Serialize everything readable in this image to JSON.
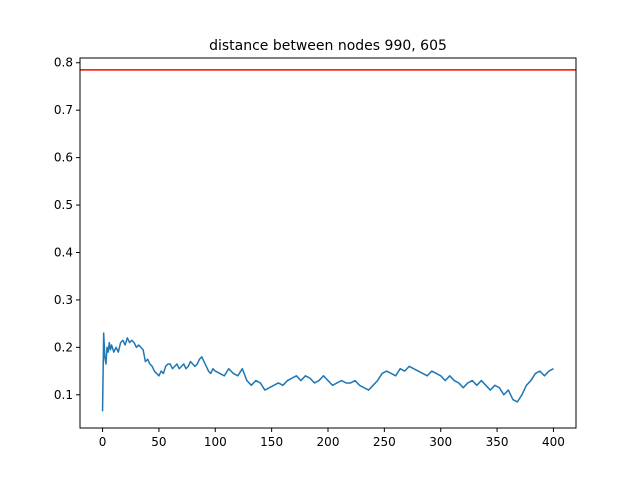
{
  "chart_data": {
    "type": "line",
    "title": "distance between nodes 990, 605",
    "xlabel": "",
    "ylabel": "",
    "xlim": [
      -20,
      420
    ],
    "ylim": [
      0.03,
      0.81
    ],
    "xticks": [
      0,
      50,
      100,
      150,
      200,
      250,
      300,
      350,
      400
    ],
    "yticks": [
      0.1,
      0.2,
      0.3,
      0.4,
      0.5,
      0.6,
      0.7,
      0.8
    ],
    "grid": false,
    "legend": "none",
    "reference_line": {
      "y": 0.785,
      "color": "#ff0000"
    },
    "series": [
      {
        "color": "#1f77b4",
        "x": [
          0,
          1,
          2,
          3,
          4,
          5,
          6,
          7,
          8,
          10,
          12,
          14,
          16,
          18,
          20,
          22,
          24,
          26,
          28,
          30,
          32,
          34,
          36,
          38,
          40,
          42,
          44,
          46,
          48,
          50,
          52,
          54,
          56,
          58,
          60,
          62,
          64,
          66,
          68,
          70,
          72,
          74,
          76,
          78,
          80,
          82,
          84,
          86,
          88,
          90,
          92,
          94,
          96,
          98,
          100,
          104,
          108,
          112,
          116,
          120,
          124,
          128,
          132,
          136,
          140,
          144,
          148,
          152,
          156,
          160,
          164,
          168,
          172,
          176,
          180,
          184,
          188,
          192,
          196,
          200,
          204,
          208,
          212,
          216,
          220,
          224,
          228,
          232,
          236,
          240,
          244,
          248,
          252,
          256,
          260,
          264,
          268,
          272,
          276,
          280,
          284,
          288,
          292,
          296,
          300,
          304,
          308,
          312,
          316,
          320,
          324,
          328,
          332,
          336,
          340,
          344,
          348,
          352,
          356,
          360,
          364,
          368,
          372,
          376,
          380,
          384,
          388,
          392,
          396,
          400
        ],
        "y": [
          0.065,
          0.23,
          0.18,
          0.165,
          0.2,
          0.19,
          0.21,
          0.195,
          0.205,
          0.19,
          0.2,
          0.19,
          0.21,
          0.215,
          0.205,
          0.22,
          0.21,
          0.215,
          0.21,
          0.2,
          0.205,
          0.2,
          0.195,
          0.17,
          0.175,
          0.165,
          0.16,
          0.15,
          0.145,
          0.14,
          0.15,
          0.145,
          0.16,
          0.165,
          0.165,
          0.155,
          0.16,
          0.165,
          0.155,
          0.16,
          0.165,
          0.155,
          0.16,
          0.17,
          0.165,
          0.16,
          0.165,
          0.175,
          0.18,
          0.17,
          0.16,
          0.15,
          0.145,
          0.155,
          0.15,
          0.145,
          0.14,
          0.155,
          0.145,
          0.14,
          0.155,
          0.13,
          0.12,
          0.13,
          0.125,
          0.11,
          0.115,
          0.12,
          0.125,
          0.12,
          0.13,
          0.135,
          0.14,
          0.13,
          0.14,
          0.135,
          0.125,
          0.13,
          0.14,
          0.13,
          0.12,
          0.125,
          0.13,
          0.125,
          0.125,
          0.13,
          0.12,
          0.115,
          0.11,
          0.12,
          0.13,
          0.145,
          0.15,
          0.145,
          0.14,
          0.155,
          0.15,
          0.16,
          0.155,
          0.15,
          0.145,
          0.14,
          0.15,
          0.145,
          0.14,
          0.13,
          0.14,
          0.13,
          0.125,
          0.115,
          0.125,
          0.13,
          0.12,
          0.13,
          0.12,
          0.11,
          0.12,
          0.115,
          0.1,
          0.11,
          0.09,
          0.085,
          0.1,
          0.12,
          0.13,
          0.145,
          0.15,
          0.14,
          0.15,
          0.155
        ]
      }
    ]
  }
}
